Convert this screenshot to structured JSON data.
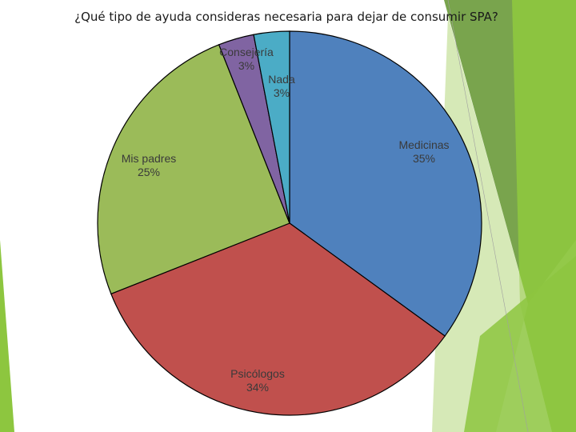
{
  "chart_data": {
    "type": "pie",
    "title": "¿Qué tipo de ayuda consideras necesaria para dejar de consumir SPA?",
    "slices": [
      {
        "label": "Medicinas",
        "pct_label": "35%",
        "value": 35,
        "color": "#4f81bd"
      },
      {
        "label": "Psicólogos",
        "pct_label": "34%",
        "value": 34,
        "color": "#c0504d"
      },
      {
        "label": "Mis padres",
        "pct_label": "25%",
        "value": 25,
        "color": "#9bbb59"
      },
      {
        "label": "Consejería",
        "pct_label": "3%",
        "value": 3,
        "color": "#8064a2"
      },
      {
        "label": "Nada",
        "pct_label": "3%",
        "value": 3,
        "color": "#4bacc6"
      }
    ]
  },
  "theme": {
    "accent_green": "#8dc63f",
    "accent_green_dark": "#6a9a3a",
    "accent_green_light": "#c5df98"
  }
}
